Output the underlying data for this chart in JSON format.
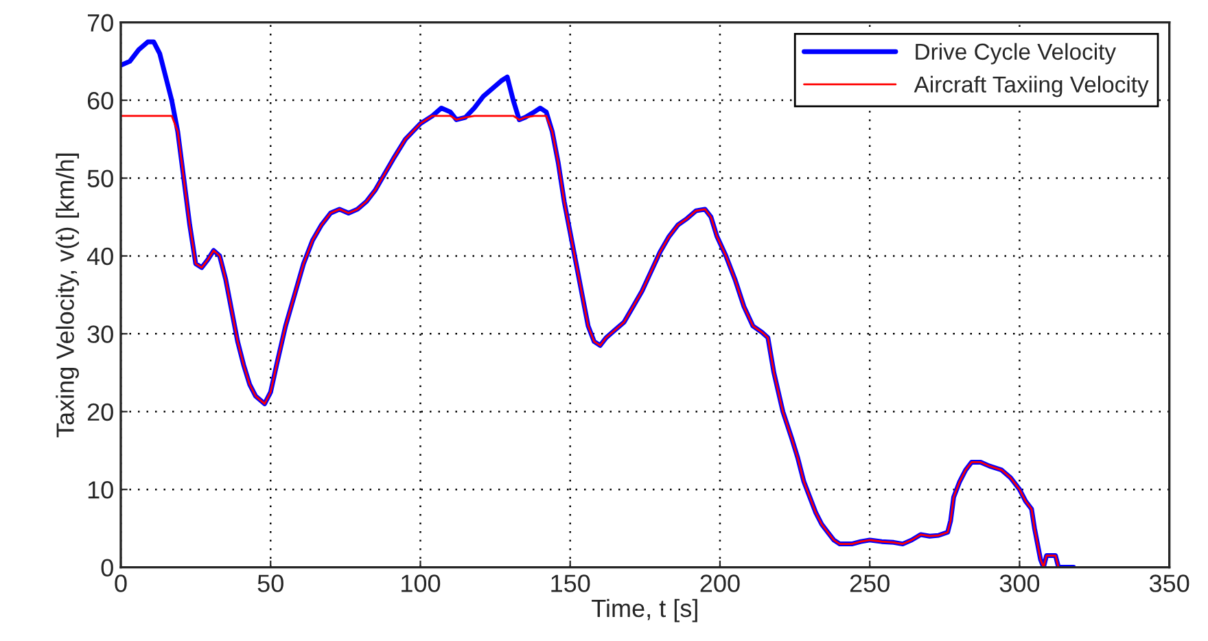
{
  "chart_data": {
    "type": "line",
    "xlabel": "Time, t [s]",
    "ylabel": "Taxing Velocity, v(t) [km/h]",
    "x": [
      0,
      3,
      6,
      9,
      11,
      13,
      15,
      17,
      19,
      21,
      23,
      25,
      27,
      29,
      31,
      33,
      35,
      37,
      39,
      41,
      43,
      45,
      48,
      50,
      52,
      55,
      58,
      61,
      64,
      67,
      70,
      73,
      76,
      79,
      82,
      85,
      88,
      91,
      95,
      100,
      104,
      107,
      110,
      112,
      115,
      118,
      121,
      124,
      127,
      129,
      131,
      133,
      135,
      138,
      140,
      142,
      144,
      146,
      148,
      150,
      152,
      154,
      156,
      158,
      160,
      162,
      165,
      168,
      171,
      174,
      177,
      180,
      183,
      186,
      189,
      192,
      195,
      197,
      199,
      202,
      205,
      208,
      211,
      214,
      216,
      218,
      221,
      224,
      226,
      228,
      230,
      232,
      234,
      236,
      238,
      240,
      244,
      247,
      250,
      254,
      258,
      261,
      264,
      267,
      270,
      273,
      276,
      277,
      278,
      280,
      282,
      284,
      287,
      290,
      294,
      297,
      300,
      302,
      304,
      305,
      306,
      307,
      308,
      309,
      311,
      312,
      313,
      318
    ],
    "series": [
      {
        "name": "Drive Cycle Velocity",
        "color": "#0000ff",
        "values": [
          64.5,
          65,
          66.5,
          67.5,
          67.5,
          66,
          63,
          60,
          56,
          50,
          44,
          39,
          38.5,
          39.5,
          40.7,
          40,
          37,
          33,
          29,
          26,
          23.5,
          22,
          21,
          22.5,
          26,
          31,
          35,
          39,
          42,
          44,
          45.5,
          46,
          45.5,
          46,
          47,
          48.5,
          50.5,
          52.5,
          55,
          57,
          58,
          59,
          58.5,
          57.5,
          57.8,
          59,
          60.5,
          61.5,
          62.5,
          63,
          60,
          57.5,
          57.8,
          58.5,
          59,
          58.5,
          56,
          52,
          47,
          43,
          39,
          35,
          31,
          29,
          28.5,
          29.5,
          30.5,
          31.5,
          33.5,
          35.5,
          38,
          40.5,
          42.5,
          44,
          44.8,
          45.8,
          46,
          45,
          42.5,
          40,
          37,
          33.5,
          31,
          30.2,
          29.5,
          25,
          20,
          16.5,
          14,
          11,
          9,
          7,
          5.5,
          4.5,
          3.5,
          3,
          3,
          3.3,
          3.5,
          3.3,
          3.2,
          3,
          3.5,
          4.2,
          4,
          4.1,
          4.5,
          6,
          9,
          11,
          12.5,
          13.5,
          13.5,
          13,
          12.5,
          11.5,
          10,
          8.5,
          7.5,
          5,
          3,
          1,
          0,
          1.5,
          1.5,
          1.5,
          0,
          0
        ]
      },
      {
        "name": "Aircraft Taxiing Velocity",
        "color": "#ff0000",
        "values": [
          58,
          58,
          58,
          58,
          58,
          58,
          58,
          58,
          56,
          50,
          44,
          39,
          38.5,
          39.5,
          40.7,
          40,
          37,
          33,
          29,
          26,
          23.5,
          22,
          21,
          22.5,
          26,
          31,
          35,
          39,
          42,
          44,
          45.5,
          46,
          45.5,
          46,
          47,
          48.5,
          50.5,
          52.5,
          55,
          57,
          58,
          58,
          58,
          57.5,
          57.8,
          58,
          58,
          58,
          58,
          58,
          58,
          57.5,
          57.8,
          58,
          58,
          58,
          56,
          52,
          47,
          43,
          39,
          35,
          31,
          29,
          28.5,
          29.5,
          30.5,
          31.5,
          33.5,
          35.5,
          38,
          40.5,
          42.5,
          44,
          44.8,
          45.8,
          46,
          45,
          42.5,
          40,
          37,
          33.5,
          31,
          30.2,
          29.5,
          25,
          20,
          16.5,
          14,
          11,
          9,
          7,
          5.5,
          4.5,
          3.5,
          3,
          3,
          3.3,
          3.5,
          3.3,
          3.2,
          3,
          3.5,
          4.2,
          4,
          4.1,
          4.5,
          6,
          9,
          11,
          12.5,
          13.5,
          13.5,
          13,
          12.5,
          11.5,
          10,
          8.5,
          7.5,
          5,
          3,
          1,
          0,
          1.5,
          1.5,
          1.5,
          0,
          0
        ]
      }
    ],
    "xlim": [
      0,
      350
    ],
    "xticks": [
      0,
      50,
      100,
      150,
      200,
      250,
      300,
      350
    ],
    "ylim": [
      0,
      70
    ],
    "yticks": [
      0,
      10,
      20,
      30,
      40,
      50,
      60,
      70
    ],
    "grid": true,
    "legend": "top right",
    "line_style": "solid",
    "marker": "none"
  }
}
